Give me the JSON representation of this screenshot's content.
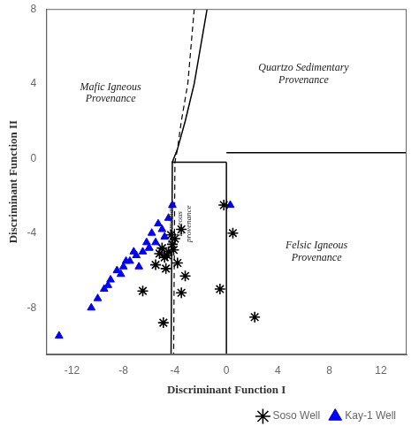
{
  "chart_data": {
    "type": "scatter",
    "xlabel": "Discriminant Function I",
    "ylabel": "Discriminant Function II",
    "xlim": [
      -14,
      14
    ],
    "ylim": [
      -10.5,
      8
    ],
    "xticks": [
      -12,
      -8,
      -4,
      0,
      4,
      8,
      12
    ],
    "yticks": [
      -8,
      -4,
      0,
      4,
      8
    ],
    "grid": false,
    "legend": "bottom right",
    "series": [
      {
        "type": "line",
        "color": "black",
        "line_style": "solid",
        "x": [
          -1.5,
          -2.5,
          -3.2,
          -3.8,
          -4.2,
          -4.3
        ],
        "values": [
          8.0,
          4.0,
          2.0,
          0.5,
          -0.2,
          -10.5
        ]
      },
      {
        "type": "line",
        "color": "black",
        "line_style": "dashed",
        "x": [
          -2.5,
          -3.0,
          -3.5,
          -3.8,
          -4.0,
          -4.1
        ],
        "values": [
          8.0,
          4.0,
          2.0,
          0.5,
          -0.2,
          -10.5
        ]
      },
      {
        "type": "line",
        "color": "black",
        "line_style": "solid",
        "x": [
          -4.25,
          0.0
        ],
        "values": [
          -0.2,
          -0.2
        ]
      },
      {
        "type": "line",
        "color": "black",
        "line_style": "solid",
        "x": [
          0.0,
          0.0
        ],
        "values": [
          -0.2,
          -10.5
        ]
      },
      {
        "type": "line",
        "color": "black",
        "line_style": "solid",
        "x": [
          0.0,
          14.0
        ],
        "values": [
          0.3,
          0.3
        ]
      },
      {
        "type": "scatter",
        "name": "Soso Well",
        "color": "black",
        "marker": "star",
        "x": [
          -3.5,
          -4.0,
          -4.2,
          -4.5,
          -4.8,
          -5.2,
          -4.1,
          -3.8,
          -4.6,
          -5.0,
          -4.3,
          -4.7,
          -3.2,
          -5.5,
          -4.9,
          -3.5,
          -6.5,
          0.5,
          -0.5,
          2.2,
          -0.2
        ],
        "values": [
          -3.8,
          -4.3,
          -4.6,
          -5.0,
          -5.3,
          -5.1,
          -4.9,
          -5.6,
          -5.2,
          -4.8,
          -4.1,
          -5.9,
          -6.3,
          -5.7,
          -8.8,
          -7.2,
          -7.1,
          -4.0,
          -7.0,
          -8.5,
          -2.5
        ]
      },
      {
        "type": "scatter",
        "name": "Kay-1 Well",
        "color": "blue",
        "marker": "triangle",
        "x": [
          -4.5,
          -5.0,
          -5.5,
          -6.0,
          -6.5,
          -7.0,
          -7.5,
          -8.0,
          -8.5,
          -9.0,
          -9.5,
          -10.0,
          -4.8,
          -5.3,
          -6.2,
          -6.8,
          -7.2,
          -7.8,
          -8.2,
          -9.2,
          -10.5,
          -13.0,
          -4.2,
          -5.8,
          -6.0,
          0.3
        ],
        "values": [
          -3.2,
          -3.8,
          -4.5,
          -4.8,
          -5.0,
          -5.2,
          -5.5,
          -5.8,
          -6.0,
          -6.5,
          -7.0,
          -7.5,
          -4.2,
          -3.5,
          -4.5,
          -5.8,
          -5.0,
          -5.5,
          -6.2,
          -6.8,
          -8.0,
          -9.5,
          -2.5,
          -4.0,
          -4.8,
          -2.5
        ]
      }
    ],
    "annotations": [
      {
        "text": "Mafic Igneous\nProvenance",
        "x": -9.0,
        "y": 3.5
      },
      {
        "text": "Quartzo Sedimentary\nProvenance",
        "x": 6.0,
        "y": 4.5
      },
      {
        "text": "Felsic Igneous\nProvenance",
        "x": 7.0,
        "y": -5.0
      },
      {
        "text": "Intermediate\nIgneous\nprovenance",
        "x": -3.6,
        "y": -3.5
      }
    ]
  }
}
